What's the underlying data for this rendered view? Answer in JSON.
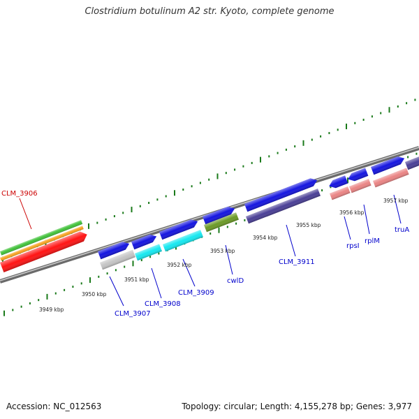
{
  "title": "Clostridium botulinum A2 str. Kyoto, complete genome",
  "footer": {
    "accession": "Accession: NC_012563",
    "summary": "Topology: circular; Length: 4,155,278 bp; Genes: 3,977"
  },
  "colors": {
    "backbone": "#8a8a8a",
    "tick": "#1a7a1a",
    "gene_blue": "#1515e0",
    "gene_cyan": "#16e8f0",
    "gene_grey": "#c4c4c4",
    "gene_olive": "#6b9a26",
    "gene_navy": "#4a3f96",
    "gene_pink": "#ea8484",
    "gene_red": "#ff1414",
    "gene_orange": "#f7a321",
    "gene_green": "#41c23a",
    "label_blue": "#0000cc",
    "label_red": "#cc0000"
  },
  "ticks": [
    "3949 kbp",
    "3950 kbp",
    "3951 kbp",
    "3952 kbp",
    "3953 kbp",
    "3954 kbp",
    "3955 kbp",
    "3956 kbp",
    "3957 kbp"
  ],
  "gene_labels": [
    {
      "name": "CLM_3906",
      "color": "#cc0000"
    },
    {
      "name": "CLM_3907",
      "color": "#0000cc"
    },
    {
      "name": "CLM_3908",
      "color": "#0000cc"
    },
    {
      "name": "CLM_3909",
      "color": "#0000cc"
    },
    {
      "name": "cwlD",
      "color": "#0000cc"
    },
    {
      "name": "CLM_3911",
      "color": "#0000cc"
    },
    {
      "name": "rpsI",
      "color": "#0000cc"
    },
    {
      "name": "rplM",
      "color": "#0000cc"
    },
    {
      "name": "truA",
      "color": "#0000cc"
    }
  ]
}
